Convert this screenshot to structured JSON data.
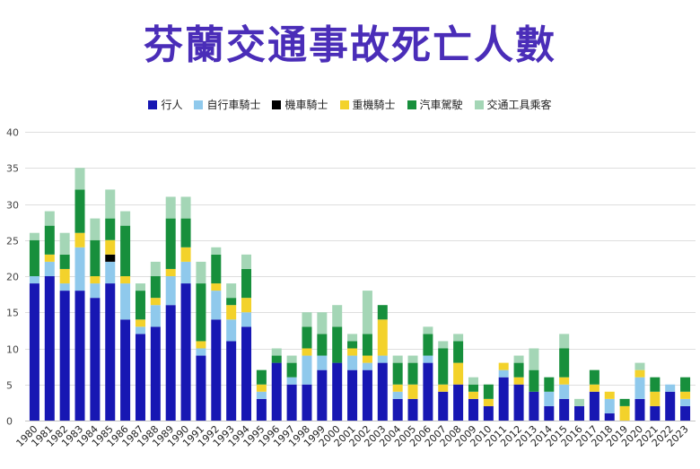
{
  "colors": {
    "title": "#4A2DB8"
  },
  "chart_data": {
    "type": "bar",
    "stacked": true,
    "title": "芬蘭交通事故死亡人數",
    "ylim": [
      0,
      40
    ],
    "yticks": [
      0,
      5,
      10,
      15,
      20,
      25,
      30,
      35,
      40
    ],
    "grid": true,
    "legend_position": "top",
    "categories": [
      "1980",
      "1981",
      "1982",
      "1983",
      "1984",
      "1985",
      "1986",
      "1987",
      "1988",
      "1989",
      "1990",
      "1991",
      "1992",
      "1993",
      "1994",
      "1995",
      "1996",
      "1997",
      "1998",
      "1999",
      "2000",
      "2001",
      "2002",
      "2003",
      "2004",
      "2005",
      "2006",
      "2007",
      "2008",
      "2009",
      "2010",
      "2011",
      "2012",
      "2013",
      "2014",
      "2015",
      "2016",
      "2017",
      "2018",
      "2019",
      "2020",
      "2021",
      "2022",
      "2023"
    ],
    "series": [
      {
        "name": "行人",
        "color": "#1717B3",
        "values": [
          19,
          20,
          18,
          18,
          17,
          19,
          14,
          12,
          13,
          16,
          19,
          9,
          14,
          11,
          13,
          3,
          8,
          5,
          5,
          7,
          8,
          7,
          7,
          8,
          3,
          3,
          8,
          4,
          5,
          3,
          2,
          6,
          5,
          4,
          2,
          3,
          2,
          4,
          1,
          0,
          3,
          2,
          4,
          2
        ]
      },
      {
        "name": "自行車騎士",
        "color": "#8FC9EC",
        "values": [
          1,
          2,
          1,
          6,
          2,
          3,
          5,
          1,
          3,
          4,
          3,
          1,
          4,
          3,
          2,
          1,
          0,
          1,
          4,
          2,
          0,
          2,
          1,
          1,
          1,
          0,
          1,
          0,
          0,
          0,
          0,
          1,
          0,
          0,
          2,
          2,
          0,
          0,
          2,
          0,
          3,
          0,
          1,
          1
        ]
      },
      {
        "name": "機車騎士",
        "color": "#000000",
        "values": [
          0,
          0,
          0,
          0,
          0,
          1,
          0,
          0,
          0,
          0,
          0,
          0,
          0,
          0,
          0,
          0,
          0,
          0,
          0,
          0,
          0,
          0,
          0,
          0,
          0,
          0,
          0,
          0,
          0,
          0,
          0,
          0,
          0,
          0,
          0,
          0,
          0,
          0,
          0,
          0,
          0,
          0,
          0,
          0
        ]
      },
      {
        "name": "重機騎士",
        "color": "#F3D22B",
        "values": [
          0,
          1,
          2,
          2,
          1,
          2,
          1,
          1,
          1,
          1,
          2,
          1,
          1,
          2,
          2,
          1,
          0,
          0,
          1,
          0,
          0,
          1,
          1,
          5,
          1,
          2,
          0,
          1,
          3,
          1,
          1,
          1,
          1,
          0,
          0,
          1,
          0,
          1,
          1,
          2,
          1,
          2,
          0,
          1
        ]
      },
      {
        "name": "汽車駕駛",
        "color": "#178F3C",
        "values": [
          5,
          4,
          2,
          6,
          5,
          3,
          7,
          4,
          3,
          7,
          4,
          8,
          4,
          1,
          4,
          2,
          1,
          2,
          3,
          3,
          5,
          1,
          3,
          2,
          3,
          3,
          3,
          5,
          3,
          1,
          2,
          0,
          2,
          3,
          2,
          4,
          0,
          2,
          0,
          1,
          0,
          2,
          0,
          2
        ]
      },
      {
        "name": "交通工具乘客",
        "color": "#A4D6B6",
        "values": [
          1,
          2,
          3,
          3,
          3,
          4,
          2,
          1,
          2,
          3,
          3,
          3,
          1,
          2,
          2,
          0,
          1,
          1,
          2,
          3,
          3,
          1,
          6,
          0,
          1,
          1,
          1,
          1,
          1,
          1,
          0,
          0,
          1,
          3,
          0,
          2,
          1,
          0,
          0,
          0,
          1,
          0,
          0,
          0
        ]
      }
    ]
  }
}
